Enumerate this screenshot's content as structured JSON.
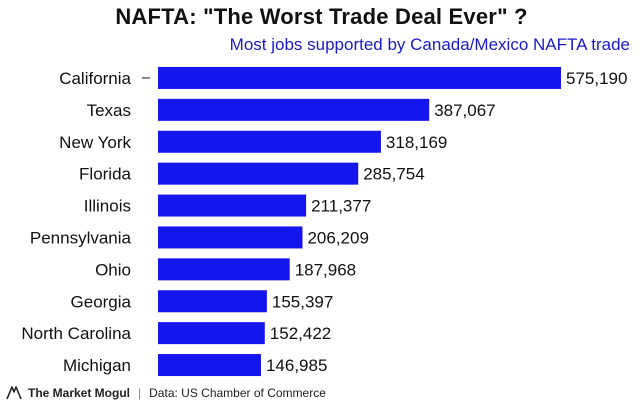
{
  "header": {
    "title": "NAFTA: \"The Worst Trade Deal Ever\" ?",
    "subtitle": "Most jobs supported by Canada/Mexico NAFTA trade"
  },
  "footer": {
    "brand": "The Market Mogul",
    "separator": "|",
    "source": "Data: US Chamber of Commerce"
  },
  "colors": {
    "bar": "#1515ee",
    "text": "#111111",
    "subtitle": "#1a1acc"
  },
  "chart_data": {
    "type": "bar",
    "orientation": "horizontal",
    "title": "NAFTA: \"The Worst Trade Deal Ever\" ?",
    "subtitle": "Most jobs supported by Canada/Mexico NAFTA trade",
    "xlabel": "",
    "ylabel": "",
    "categories": [
      "California",
      "Texas",
      "New York",
      "Florida",
      "Illinois",
      "Pennsylvania",
      "Ohio",
      "Georgia",
      "North Carolina",
      "Michigan"
    ],
    "values": [
      575190,
      387067,
      318169,
      285754,
      211377,
      206209,
      187968,
      155397,
      152422,
      146985
    ],
    "value_labels": [
      "575,190",
      "387,067",
      "318,169",
      "285,754",
      "211,377",
      "206,209",
      "187,968",
      "155,397",
      "152,422",
      "146,985"
    ],
    "xlim": [
      0,
      575190
    ]
  }
}
